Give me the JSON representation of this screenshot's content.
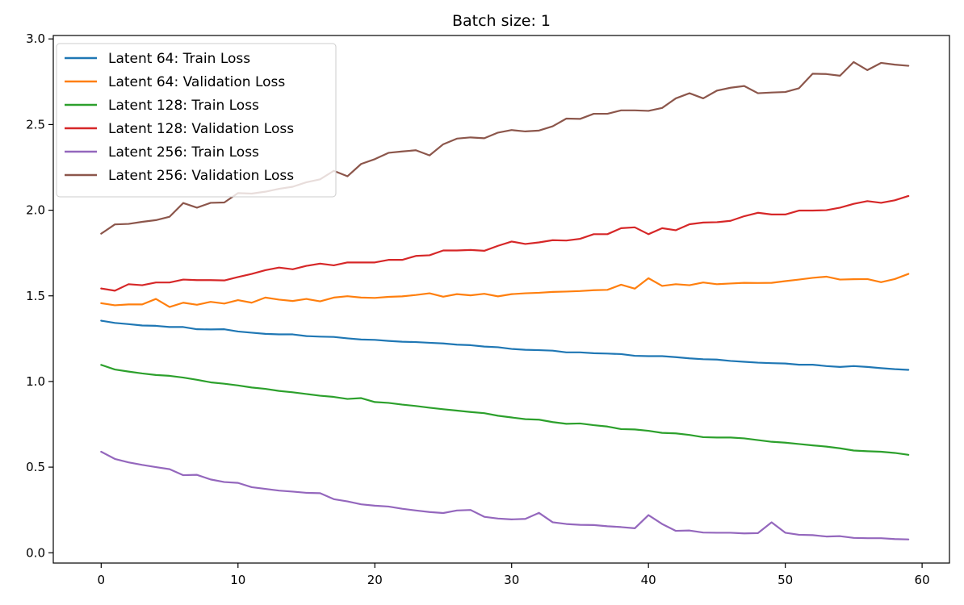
{
  "chart_data": {
    "type": "line",
    "title": "Batch size: 1",
    "xlabel": "",
    "ylabel": "",
    "xlim": [
      -3.5,
      62
    ],
    "ylim": [
      -0.06,
      3.02
    ],
    "x_ticks": [
      0,
      10,
      20,
      30,
      40,
      50,
      60
    ],
    "y_ticks": [
      0.0,
      0.5,
      1.0,
      1.5,
      2.0,
      2.5,
      3.0
    ],
    "x_tick_labels": [
      "0",
      "10",
      "20",
      "30",
      "40",
      "50",
      "60"
    ],
    "y_tick_labels": [
      "0.0",
      "0.5",
      "1.0",
      "1.5",
      "2.0",
      "2.5",
      "3.0"
    ],
    "grid": false,
    "legend_position": "top-left",
    "x": [
      0,
      1,
      2,
      3,
      4,
      5,
      6,
      7,
      8,
      9,
      10,
      11,
      12,
      13,
      14,
      15,
      16,
      17,
      18,
      19,
      20,
      21,
      22,
      23,
      24,
      25,
      26,
      27,
      28,
      29,
      30,
      31,
      32,
      33,
      34,
      35,
      36,
      37,
      38,
      39,
      40,
      41,
      42,
      43,
      44,
      45,
      46,
      47,
      48,
      49,
      50,
      51,
      52,
      53,
      54,
      55,
      56,
      57,
      58,
      59
    ],
    "series": [
      {
        "name": "Latent 64: Train Loss",
        "color": "#1f77b4",
        "values": [
          1.355,
          1.342,
          1.335,
          1.327,
          1.325,
          1.318,
          1.318,
          1.305,
          1.304,
          1.305,
          1.292,
          1.285,
          1.278,
          1.275,
          1.275,
          1.265,
          1.262,
          1.26,
          1.252,
          1.245,
          1.243,
          1.237,
          1.232,
          1.23,
          1.226,
          1.222,
          1.215,
          1.212,
          1.204,
          1.2,
          1.19,
          1.185,
          1.183,
          1.18,
          1.17,
          1.17,
          1.165,
          1.163,
          1.16,
          1.15,
          1.148,
          1.148,
          1.142,
          1.135,
          1.13,
          1.128,
          1.12,
          1.115,
          1.11,
          1.107,
          1.105,
          1.098,
          1.098,
          1.09,
          1.085,
          1.09,
          1.085,
          1.078,
          1.072,
          1.068
        ]
      },
      {
        "name": "Latent 64: Validation Loss",
        "color": "#ff7f0e",
        "values": [
          1.457,
          1.445,
          1.45,
          1.45,
          1.482,
          1.435,
          1.46,
          1.448,
          1.465,
          1.455,
          1.475,
          1.46,
          1.49,
          1.478,
          1.47,
          1.482,
          1.468,
          1.49,
          1.498,
          1.49,
          1.488,
          1.494,
          1.497,
          1.505,
          1.515,
          1.495,
          1.51,
          1.503,
          1.512,
          1.497,
          1.51,
          1.515,
          1.518,
          1.523,
          1.525,
          1.528,
          1.533,
          1.535,
          1.565,
          1.542,
          1.603,
          1.558,
          1.568,
          1.562,
          1.578,
          1.568,
          1.572,
          1.576,
          1.575,
          1.576,
          1.586,
          1.595,
          1.605,
          1.612,
          1.595,
          1.597,
          1.598,
          1.58,
          1.598,
          1.628
        ]
      },
      {
        "name": "Latent 128: Train Loss",
        "color": "#2ca02c",
        "values": [
          1.097,
          1.07,
          1.058,
          1.047,
          1.038,
          1.033,
          1.023,
          1.01,
          0.995,
          0.987,
          0.977,
          0.965,
          0.957,
          0.945,
          0.937,
          0.927,
          0.917,
          0.91,
          0.898,
          0.903,
          0.88,
          0.875,
          0.865,
          0.857,
          0.847,
          0.838,
          0.83,
          0.822,
          0.815,
          0.8,
          0.79,
          0.78,
          0.777,
          0.763,
          0.753,
          0.755,
          0.745,
          0.737,
          0.722,
          0.72,
          0.712,
          0.7,
          0.697,
          0.688,
          0.675,
          0.673,
          0.673,
          0.668,
          0.658,
          0.648,
          0.643,
          0.635,
          0.627,
          0.62,
          0.61,
          0.597,
          0.593,
          0.59,
          0.583,
          0.572
        ]
      },
      {
        "name": "Latent 128: Validation Loss",
        "color": "#d62728",
        "values": [
          1.543,
          1.53,
          1.568,
          1.562,
          1.578,
          1.578,
          1.595,
          1.592,
          1.592,
          1.59,
          1.61,
          1.628,
          1.65,
          1.665,
          1.655,
          1.675,
          1.688,
          1.678,
          1.695,
          1.695,
          1.695,
          1.71,
          1.71,
          1.733,
          1.737,
          1.765,
          1.765,
          1.768,
          1.763,
          1.792,
          1.817,
          1.803,
          1.812,
          1.825,
          1.823,
          1.833,
          1.86,
          1.86,
          1.895,
          1.9,
          1.86,
          1.895,
          1.883,
          1.918,
          1.928,
          1.93,
          1.938,
          1.965,
          1.985,
          1.975,
          1.975,
          1.998,
          1.998,
          2.0,
          2.015,
          2.037,
          2.053,
          2.043,
          2.058,
          2.083
        ]
      },
      {
        "name": "Latent 256: Train Loss",
        "color": "#9467bd",
        "values": [
          0.59,
          0.548,
          0.528,
          0.513,
          0.5,
          0.488,
          0.453,
          0.455,
          0.428,
          0.413,
          0.408,
          0.383,
          0.373,
          0.363,
          0.357,
          0.35,
          0.348,
          0.313,
          0.3,
          0.283,
          0.275,
          0.27,
          0.257,
          0.247,
          0.238,
          0.232,
          0.247,
          0.25,
          0.21,
          0.2,
          0.195,
          0.198,
          0.233,
          0.178,
          0.168,
          0.163,
          0.162,
          0.155,
          0.15,
          0.143,
          0.22,
          0.168,
          0.128,
          0.13,
          0.118,
          0.117,
          0.117,
          0.113,
          0.115,
          0.178,
          0.117,
          0.105,
          0.103,
          0.095,
          0.097,
          0.087,
          0.085,
          0.085,
          0.08,
          0.078
        ]
      },
      {
        "name": "Latent 256: Validation Loss",
        "color": "#8c564b",
        "values": [
          1.863,
          1.917,
          1.92,
          1.932,
          1.942,
          1.962,
          2.042,
          2.015,
          2.043,
          2.045,
          2.1,
          2.097,
          2.108,
          2.125,
          2.137,
          2.163,
          2.18,
          2.23,
          2.198,
          2.27,
          2.298,
          2.335,
          2.343,
          2.35,
          2.32,
          2.385,
          2.418,
          2.425,
          2.42,
          2.453,
          2.468,
          2.46,
          2.465,
          2.49,
          2.535,
          2.533,
          2.563,
          2.563,
          2.583,
          2.583,
          2.58,
          2.597,
          2.653,
          2.683,
          2.653,
          2.698,
          2.715,
          2.725,
          2.683,
          2.687,
          2.69,
          2.712,
          2.797,
          2.795,
          2.785,
          2.865,
          2.818,
          2.86,
          2.85,
          2.843
        ]
      }
    ]
  }
}
